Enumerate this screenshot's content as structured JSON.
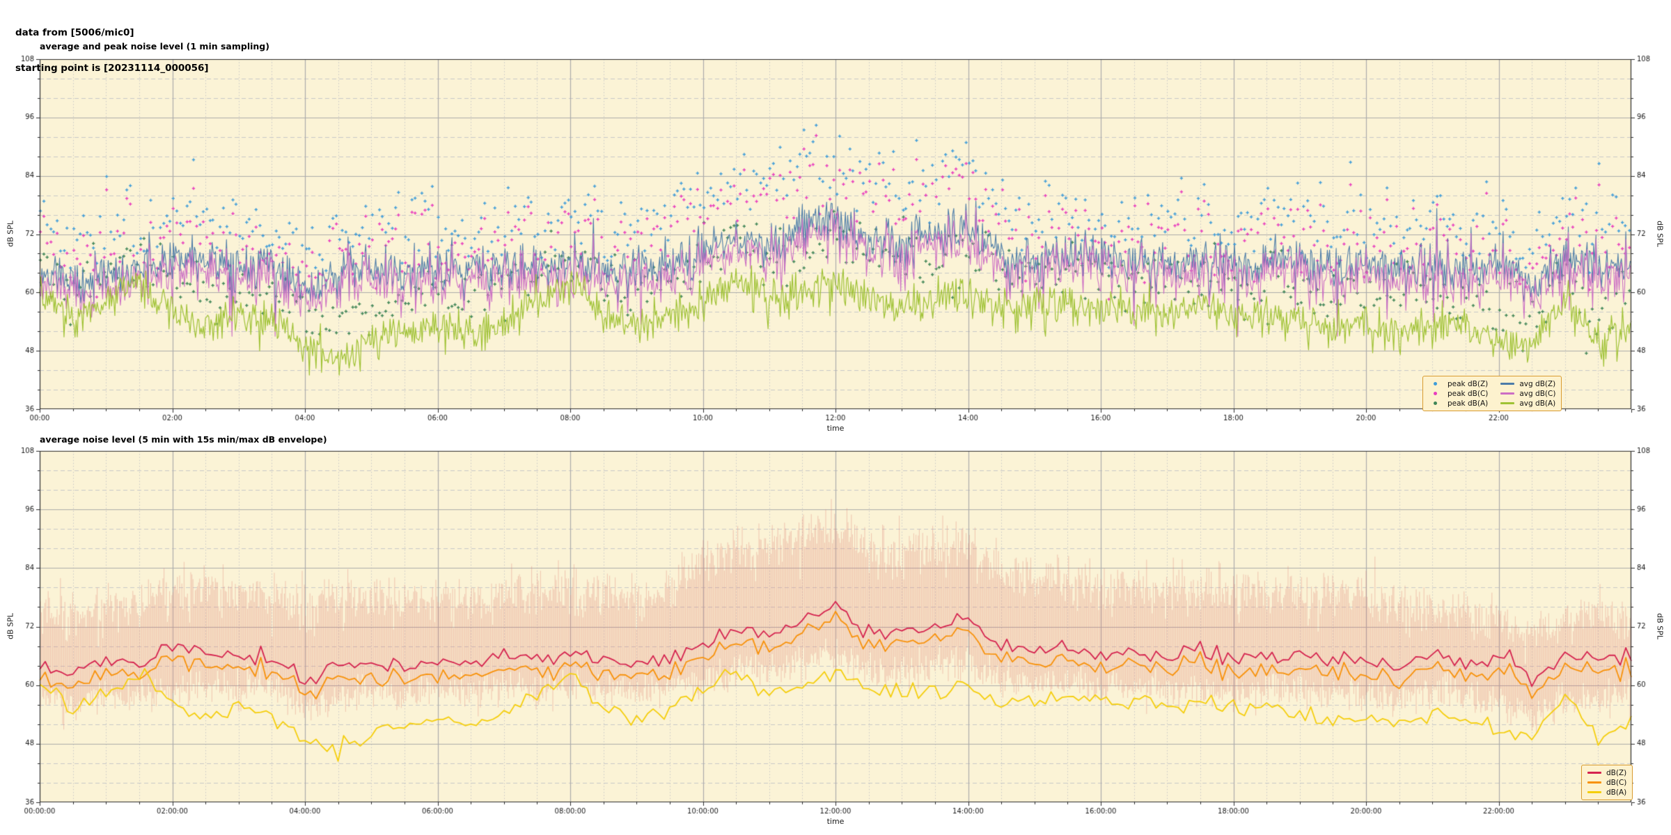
{
  "header": {
    "line1": "data from [5006/mic0]",
    "line2": "starting point is [20231114_000056]"
  },
  "figure": {
    "background": "#ffffff",
    "plot_background": "#fbf3d6",
    "grid_major_color": "#ababab",
    "grid_minor_color": "#c8c8c8",
    "spine_color": "#2b2b2b",
    "tick_label_color": "#1a1a1a",
    "legend_background": "#fdf2ce",
    "legend_border": "#d99b2f"
  },
  "chart_data": [
    {
      "type": "line+scatter",
      "title": "average and peak noise level (1 min sampling)",
      "xlabel": "time",
      "ylabel_left": "dB SPL",
      "ylabel_right": "dB SPL",
      "ylim": [
        36,
        108
      ],
      "yticks": [
        36,
        48,
        60,
        72,
        84,
        96,
        108
      ],
      "y_minor_step": 4,
      "x_range_hours": [
        0,
        24
      ],
      "xtick_step_hours": 2,
      "x_minor_step_hours": 0.5,
      "xtick_labels": [
        "00:00",
        "02:00",
        "04:00",
        "06:00",
        "08:00",
        "10:00",
        "12:00",
        "14:00",
        "16:00",
        "18:00",
        "20:00",
        "22:00"
      ],
      "sampling_interval": "1 min",
      "anchor_step_hours": 0.5,
      "legend_position": "lower right",
      "series": [
        {
          "name": "peak dB(Z)",
          "style": "scatter",
          "color": "#3e9cd9",
          "anchors": [
            72,
            70,
            73,
            72,
            76,
            75,
            73,
            74,
            69,
            72,
            73,
            72,
            73,
            72,
            74,
            73,
            74,
            73,
            72,
            75,
            79,
            83,
            82,
            86,
            87,
            83,
            81,
            83,
            84,
            78,
            76,
            77,
            74,
            75,
            74,
            75,
            73,
            74,
            74,
            73,
            74,
            72,
            74,
            72,
            74,
            69,
            75,
            73,
            74
          ]
        },
        {
          "name": "peak dB(C)",
          "style": "scatter",
          "color": "#e93cbe",
          "anchors": [
            70,
            68,
            71,
            70,
            74,
            73,
            71,
            72,
            67,
            70,
            71,
            70,
            71,
            70,
            72,
            71,
            72,
            71,
            70,
            73,
            77,
            81,
            80,
            84,
            85,
            81,
            79,
            81,
            82,
            76,
            74,
            75,
            72,
            73,
            72,
            73,
            71,
            72,
            72,
            71,
            72,
            70,
            72,
            70,
            72,
            67,
            73,
            71,
            72
          ]
        },
        {
          "name": "peak dB(A)",
          "style": "scatter",
          "color": "#3e8556",
          "anchors": [
            66,
            61,
            64,
            68,
            62,
            59,
            62,
            60,
            55,
            53,
            56,
            58,
            59,
            58,
            60,
            64,
            68,
            61,
            59,
            62,
            67,
            72,
            67,
            69,
            71,
            68,
            66,
            68,
            69,
            64,
            63,
            64,
            62,
            63,
            62,
            63,
            61,
            62,
            60,
            59,
            60,
            58,
            60,
            59,
            56,
            55,
            65,
            54,
            60
          ]
        },
        {
          "name": "avg dB(Z)",
          "style": "line",
          "color": "#4c7ca8",
          "anchors": [
            64,
            62,
            65,
            64,
            68,
            67,
            65,
            66,
            61,
            64,
            65,
            64,
            65,
            64,
            66,
            65,
            66,
            65,
            64,
            66,
            68,
            71,
            70,
            74,
            75,
            71,
            70,
            72,
            73,
            68,
            67,
            68,
            66,
            67,
            66,
            67,
            65,
            66,
            66,
            65,
            66,
            64,
            66,
            64,
            66,
            61,
            67,
            65,
            66
          ]
        },
        {
          "name": "avg dB(C)",
          "style": "line",
          "color": "#cc6ec4",
          "anchors": [
            62,
            60,
            63,
            62,
            66,
            65,
            63,
            64,
            59,
            62,
            63,
            62,
            63,
            62,
            64,
            63,
            64,
            63,
            62,
            64,
            66,
            69,
            68,
            72,
            73,
            69,
            68,
            70,
            71,
            66,
            65,
            66,
            64,
            65,
            64,
            65,
            63,
            64,
            64,
            63,
            64,
            62,
            64,
            62,
            64,
            58,
            65,
            63,
            64
          ]
        },
        {
          "name": "avg dB(A)",
          "style": "line",
          "color": "#9fc234",
          "anchors": [
            60,
            55,
            58,
            62,
            56,
            53,
            56,
            54,
            49,
            47,
            50,
            52,
            53,
            52,
            54,
            58,
            62,
            55,
            53,
            55,
            58,
            63,
            58,
            60,
            62,
            59,
            58,
            59,
            60,
            56,
            57,
            58,
            56,
            57,
            56,
            57,
            55,
            56,
            54,
            53,
            54,
            52,
            54,
            53,
            50,
            49,
            59,
            48,
            54
          ]
        }
      ]
    },
    {
      "type": "line",
      "title": "average noise level (5 min with 15s min/max dB envelope)",
      "xlabel": "time",
      "ylabel_left": "dB SPL",
      "ylabel_right": "dB SPL",
      "ylim": [
        36,
        108
      ],
      "yticks": [
        36,
        48,
        60,
        72,
        84,
        96,
        108
      ],
      "y_minor_step": 4,
      "x_range_hours": [
        0,
        24
      ],
      "xtick_step_hours": 2,
      "x_minor_step_hours": 0.5,
      "xtick_labels": [
        "00:00:00",
        "02:00:00",
        "04:00:00",
        "06:00:00",
        "08:00:00",
        "10:00:00",
        "12:00:00",
        "14:00:00",
        "16:00:00",
        "18:00:00",
        "20:00:00",
        "22:00:00"
      ],
      "sampling_interval": "5 min",
      "anchor_step_hours": 0.5,
      "legend_position": "lower right",
      "envelope": {
        "label": "15s min/max dB envelope",
        "color": "#dc7a6e",
        "opacity": 0.38,
        "max_anchors": [
          75,
          74,
          76,
          77,
          80,
          80,
          79,
          79,
          75,
          77,
          78,
          77,
          78,
          77,
          79,
          78,
          79,
          78,
          77,
          81,
          85,
          88,
          88,
          91,
          92,
          88,
          86,
          88,
          89,
          83,
          81,
          82,
          79,
          80,
          79,
          80,
          78,
          79,
          79,
          78,
          79,
          77,
          76,
          74,
          74,
          70,
          74,
          74,
          74
        ],
        "min_anchors": [
          58,
          56,
          58,
          58,
          59,
          60,
          59,
          60,
          55,
          58,
          59,
          58,
          59,
          58,
          60,
          59,
          60,
          59,
          58,
          60,
          61,
          63,
          62,
          65,
          66,
          63,
          62,
          64,
          65,
          61,
          60,
          61,
          59,
          60,
          59,
          60,
          58,
          59,
          59,
          58,
          59,
          57,
          59,
          57,
          57,
          53,
          57,
          57,
          58
        ]
      },
      "series": [
        {
          "name": "dB(Z)",
          "style": "line",
          "color": "#d5234f",
          "anchors": [
            64,
            62,
            65,
            64,
            68,
            67,
            65,
            66,
            61,
            64,
            65,
            64,
            65,
            64,
            66,
            65,
            66,
            65,
            64,
            66,
            68,
            71,
            70,
            74,
            75,
            71,
            70,
            72,
            73,
            68,
            67,
            68,
            66,
            67,
            66,
            67,
            65,
            66,
            66,
            65,
            66,
            64,
            66,
            64,
            66,
            61,
            67,
            65,
            66
          ]
        },
        {
          "name": "dB(C)",
          "style": "line",
          "color": "#f8920a",
          "anchors": [
            62,
            60,
            63,
            62,
            66,
            65,
            63,
            64,
            59,
            62,
            63,
            62,
            63,
            62,
            64,
            63,
            64,
            63,
            62,
            64,
            66,
            69,
            68,
            72,
            73,
            69,
            68,
            70,
            71,
            66,
            65,
            66,
            64,
            65,
            64,
            65,
            63,
            64,
            64,
            63,
            64,
            62,
            64,
            62,
            64,
            58,
            65,
            63,
            64
          ]
        },
        {
          "name": "dB(A)",
          "style": "line",
          "color": "#f5ce0c",
          "anchors": [
            60,
            55,
            58,
            62,
            56,
            53,
            56,
            54,
            49,
            47,
            50,
            52,
            53,
            52,
            54,
            58,
            62,
            55,
            53,
            55,
            58,
            63,
            58,
            60,
            62,
            59,
            58,
            59,
            60,
            56,
            57,
            58,
            56,
            57,
            56,
            57,
            55,
            56,
            54,
            53,
            54,
            52,
            54,
            53,
            50,
            49,
            59,
            48,
            54
          ]
        }
      ]
    }
  ]
}
